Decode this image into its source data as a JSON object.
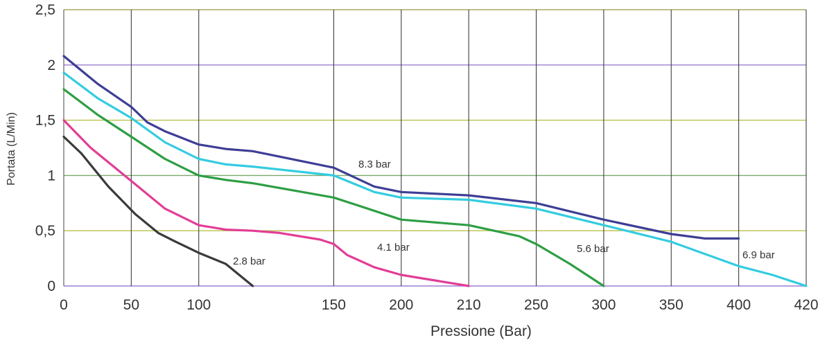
{
  "chart_data": {
    "type": "line",
    "title": "",
    "xlabel": "Pressione (Bar)",
    "ylabel": "Portata (L/Min)",
    "ylim": [
      0,
      2.5
    ],
    "grid": true,
    "x_ticks": [
      "0",
      "50",
      "100",
      "150",
      "200",
      "210",
      "250",
      "300",
      "350",
      "400",
      "420"
    ],
    "y_ticks": [
      {
        "value": 0,
        "label": "0"
      },
      {
        "value": 0.5,
        "label": "0,5"
      },
      {
        "value": 1,
        "label": "1"
      },
      {
        "value": 1.5,
        "label": "1,5"
      },
      {
        "value": 2,
        "label": "2"
      },
      {
        "value": 2.5,
        "label": "2,5"
      }
    ],
    "series": [
      {
        "name": "2.8 bar",
        "color": "#3a3a3a",
        "points": [
          [
            0,
            1.35
          ],
          [
            13,
            1.2
          ],
          [
            33,
            0.9
          ],
          [
            53,
            0.65
          ],
          [
            70,
            0.48
          ],
          [
            83,
            0.4
          ],
          [
            100,
            0.3
          ],
          [
            110,
            0.2
          ],
          [
            115,
            0.1
          ],
          [
            120,
            0
          ]
        ]
      },
      {
        "name": "4.1 bar",
        "color": "#e23d95",
        "points": [
          [
            0,
            1.5
          ],
          [
            20,
            1.25
          ],
          [
            50,
            0.95
          ],
          [
            75,
            0.7
          ],
          [
            100,
            0.55
          ],
          [
            110,
            0.51
          ],
          [
            120,
            0.5
          ],
          [
            130,
            0.48
          ],
          [
            145,
            0.42
          ],
          [
            150,
            0.38
          ],
          [
            160,
            0.28
          ],
          [
            180,
            0.17
          ],
          [
            200,
            0.1
          ],
          [
            205,
            0.05
          ],
          [
            210,
            0
          ]
        ]
      },
      {
        "name": "5.6 bar",
        "color": "#2e9e44",
        "points": [
          [
            0,
            1.78
          ],
          [
            25,
            1.55
          ],
          [
            50,
            1.35
          ],
          [
            75,
            1.15
          ],
          [
            100,
            1.0
          ],
          [
            110,
            0.96
          ],
          [
            120,
            0.93
          ],
          [
            150,
            0.8
          ],
          [
            200,
            0.6
          ],
          [
            210,
            0.55
          ],
          [
            225,
            0.5
          ],
          [
            240,
            0.45
          ],
          [
            250,
            0.38
          ],
          [
            275,
            0.2
          ],
          [
            300,
            0
          ]
        ]
      },
      {
        "name": "6.9 bar",
        "color": "#33cce0",
        "points": [
          [
            0,
            1.93
          ],
          [
            25,
            1.7
          ],
          [
            50,
            1.52
          ],
          [
            75,
            1.3
          ],
          [
            100,
            1.15
          ],
          [
            110,
            1.1
          ],
          [
            120,
            1.08
          ],
          [
            150,
            1.0
          ],
          [
            180,
            0.85
          ],
          [
            200,
            0.8
          ],
          [
            210,
            0.78
          ],
          [
            250,
            0.7
          ],
          [
            300,
            0.55
          ],
          [
            350,
            0.4
          ],
          [
            400,
            0.18
          ],
          [
            410,
            0.1
          ],
          [
            420,
            0
          ]
        ]
      },
      {
        "name": "8.3 bar",
        "color": "#3e3e96",
        "points": [
          [
            0,
            2.08
          ],
          [
            25,
            1.83
          ],
          [
            50,
            1.62
          ],
          [
            62,
            1.48
          ],
          [
            75,
            1.4
          ],
          [
            100,
            1.28
          ],
          [
            110,
            1.24
          ],
          [
            120,
            1.22
          ],
          [
            150,
            1.07
          ],
          [
            180,
            0.9
          ],
          [
            200,
            0.85
          ],
          [
            210,
            0.82
          ],
          [
            250,
            0.75
          ],
          [
            300,
            0.6
          ],
          [
            350,
            0.47
          ],
          [
            375,
            0.43
          ],
          [
            400,
            0.43
          ]
        ]
      }
    ]
  }
}
